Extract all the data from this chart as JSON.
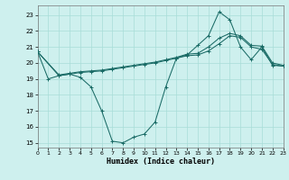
{
  "bg_color": "#cef0ee",
  "grid_color": "#a8ddd8",
  "line_color": "#1a6b66",
  "xlabel": "Humidex (Indice chaleur)",
  "xlim": [
    0,
    23
  ],
  "ylim": [
    14.7,
    23.6
  ],
  "yticks": [
    15,
    16,
    17,
    18,
    19,
    20,
    21,
    22,
    23
  ],
  "xticks": [
    0,
    1,
    2,
    3,
    4,
    5,
    6,
    7,
    8,
    9,
    10,
    11,
    12,
    13,
    14,
    15,
    16,
    17,
    18,
    19,
    20,
    21,
    22,
    23
  ],
  "line1_x": [
    0,
    1,
    2,
    3,
    4,
    5,
    6,
    7,
    8,
    9,
    10,
    11,
    12,
    13,
    14,
    15,
    16,
    17,
    18,
    19,
    20,
    21,
    22,
    23
  ],
  "line1_y": [
    20.7,
    19.0,
    19.2,
    19.3,
    19.1,
    18.5,
    17.0,
    15.1,
    15.0,
    15.35,
    15.55,
    16.3,
    18.5,
    20.3,
    20.5,
    21.1,
    21.7,
    23.2,
    22.7,
    21.0,
    20.2,
    21.0,
    19.85,
    19.8
  ],
  "line2_x": [
    0,
    2,
    3,
    4,
    5,
    6,
    7,
    8,
    9,
    10,
    11,
    12,
    13,
    14,
    15,
    16,
    17,
    18,
    19,
    20,
    21,
    22,
    23
  ],
  "line2_y": [
    20.7,
    19.25,
    19.35,
    19.45,
    19.5,
    19.55,
    19.65,
    19.75,
    19.85,
    19.95,
    20.05,
    20.2,
    20.35,
    20.55,
    20.6,
    21.0,
    21.55,
    21.85,
    21.7,
    21.1,
    21.05,
    20.0,
    19.85
  ],
  "line3_x": [
    0,
    2,
    3,
    4,
    5,
    6,
    7,
    8,
    9,
    10,
    11,
    12,
    13,
    14,
    15,
    16,
    17,
    18,
    19,
    20,
    21,
    22,
    23
  ],
  "line3_y": [
    20.7,
    19.2,
    19.3,
    19.4,
    19.45,
    19.5,
    19.6,
    19.7,
    19.8,
    19.9,
    20.0,
    20.15,
    20.3,
    20.45,
    20.5,
    20.75,
    21.2,
    21.7,
    21.6,
    21.0,
    20.85,
    19.9,
    19.8
  ]
}
